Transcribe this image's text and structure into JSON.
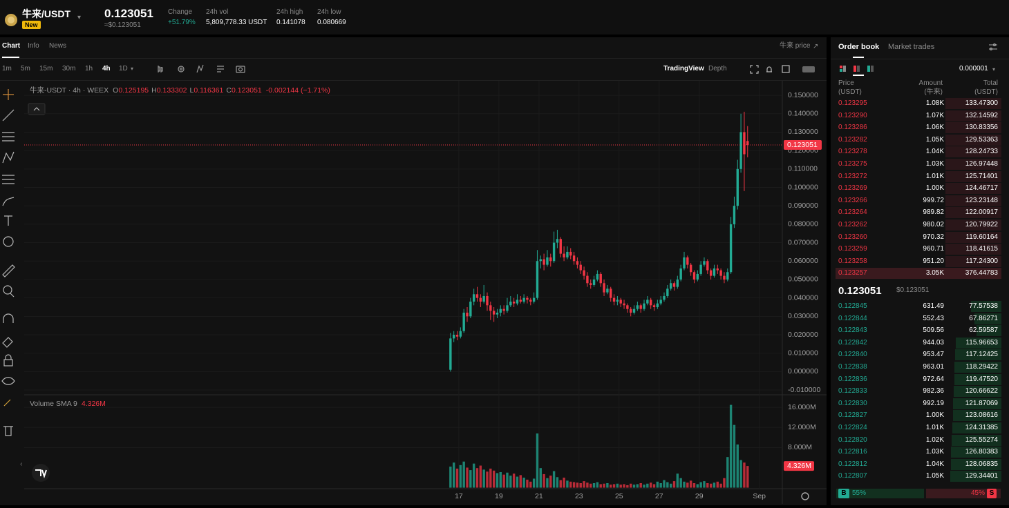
{
  "header": {
    "pair": "牛来/USDT",
    "badge": "New",
    "price": "0.123051",
    "price_usd": "≈$0.123051",
    "stats": [
      {
        "label": "Change",
        "value": "+51.79%"
      },
      {
        "label": "24h vol",
        "value": "5,809,778.33 USDT"
      },
      {
        "label": "24h high",
        "value": "0.141078"
      },
      {
        "label": "24h low",
        "value": "0.080669"
      }
    ]
  },
  "tabs": [
    "Chart",
    "Info",
    "News"
  ],
  "price_link": "牛来 price",
  "intervals": [
    "1m",
    "5m",
    "15m",
    "30m",
    "1h",
    "4h",
    "1D"
  ],
  "views": [
    "TradingView",
    "Depth"
  ],
  "chart_data": {
    "type": "candlestick",
    "legend": {
      "symbol": "牛来-USDT · 4h · WEEX",
      "o_label": "O",
      "o": "0.125195",
      "h_label": "H",
      "h": "0.133302",
      "l_label": "L",
      "l": "0.116361",
      "c_label": "C",
      "c": "0.123051",
      "change": "-0.002144 (−1.71%)"
    },
    "up_color": "#22ab94",
    "down_color": "#f23645",
    "grid": true,
    "xlim": [
      -127.7,
      99.4
    ],
    "xticks": [
      {
        "value": 2.5,
        "label": "17"
      },
      {
        "value": 14.5,
        "label": "19"
      },
      {
        "value": 26.5,
        "label": "21"
      },
      {
        "value": 38.5,
        "label": "23"
      },
      {
        "value": 50.5,
        "label": "25"
      },
      {
        "value": 62.5,
        "label": "27"
      },
      {
        "value": 74.5,
        "label": "29"
      },
      {
        "value": 92.5,
        "label": "Sep"
      }
    ],
    "ylim": [
      -0.0126,
      0.1579
    ],
    "yticks": [
      {
        "value": 0.15,
        "label": "0.150000"
      },
      {
        "value": 0.14,
        "label": "0.140000"
      },
      {
        "value": 0.13,
        "label": "0.130000"
      },
      {
        "value": 0.12,
        "label": "0.120000"
      },
      {
        "value": 0.11,
        "label": "0.110000"
      },
      {
        "value": 0.1,
        "label": "0.100000"
      },
      {
        "value": 0.09,
        "label": "0.090000"
      },
      {
        "value": 0.08,
        "label": "0.080000"
      },
      {
        "value": 0.07,
        "label": "0.070000"
      },
      {
        "value": 0.06,
        "label": "0.060000"
      },
      {
        "value": 0.05,
        "label": "0.050000"
      },
      {
        "value": 0.04,
        "label": "0.040000"
      },
      {
        "value": 0.03,
        "label": "0.030000"
      },
      {
        "value": 0.02,
        "label": "0.020000"
      },
      {
        "value": 0.01,
        "label": "0.010000"
      },
      {
        "value": 0,
        "label": "0.000000"
      },
      {
        "value": -0.01,
        "label": "-0.010000"
      }
    ],
    "last_price": {
      "value": 0.123051,
      "label": "0.123051"
    },
    "candles": [
      [
        0.001,
        0.021,
        0.0,
        0.018
      ],
      [
        0.018,
        0.022,
        0.016,
        0.02
      ],
      [
        0.02,
        0.022,
        0.017,
        0.019
      ],
      [
        0.019,
        0.024,
        0.018,
        0.022
      ],
      [
        0.022,
        0.034,
        0.021,
        0.032
      ],
      [
        0.032,
        0.035,
        0.027,
        0.03
      ],
      [
        0.03,
        0.04,
        0.029,
        0.038
      ],
      [
        0.038,
        0.045,
        0.036,
        0.042
      ],
      [
        0.042,
        0.046,
        0.038,
        0.04
      ],
      [
        0.04,
        0.042,
        0.035,
        0.038
      ],
      [
        0.038,
        0.047,
        0.037,
        0.041
      ],
      [
        0.041,
        0.043,
        0.033,
        0.036
      ],
      [
        0.036,
        0.038,
        0.028,
        0.033
      ],
      [
        0.033,
        0.035,
        0.027,
        0.031
      ],
      [
        0.031,
        0.034,
        0.029,
        0.032
      ],
      [
        0.032,
        0.036,
        0.03,
        0.034
      ],
      [
        0.034,
        0.036,
        0.031,
        0.033
      ],
      [
        0.033,
        0.04,
        0.032,
        0.036
      ],
      [
        0.036,
        0.041,
        0.035,
        0.038
      ],
      [
        0.038,
        0.04,
        0.035,
        0.037
      ],
      [
        0.037,
        0.042,
        0.036,
        0.039
      ],
      [
        0.039,
        0.041,
        0.037,
        0.038
      ],
      [
        0.038,
        0.042,
        0.037,
        0.04
      ],
      [
        0.04,
        0.041,
        0.037,
        0.039
      ],
      [
        0.039,
        0.04,
        0.036,
        0.038
      ],
      [
        0.038,
        0.043,
        0.037,
        0.04
      ],
      [
        0.04,
        0.066,
        0.039,
        0.06
      ],
      [
        0.06,
        0.063,
        0.056,
        0.061
      ],
      [
        0.061,
        0.064,
        0.055,
        0.058
      ],
      [
        0.058,
        0.066,
        0.057,
        0.062
      ],
      [
        0.062,
        0.064,
        0.057,
        0.06
      ],
      [
        0.06,
        0.076,
        0.059,
        0.07
      ],
      [
        0.07,
        0.077,
        0.067,
        0.072
      ],
      [
        0.072,
        0.073,
        0.062,
        0.064
      ],
      [
        0.064,
        0.068,
        0.06,
        0.062
      ],
      [
        0.062,
        0.068,
        0.061,
        0.065
      ],
      [
        0.065,
        0.067,
        0.061,
        0.063
      ],
      [
        0.063,
        0.065,
        0.058,
        0.06
      ],
      [
        0.06,
        0.062,
        0.056,
        0.058
      ],
      [
        0.058,
        0.06,
        0.053,
        0.055
      ],
      [
        0.055,
        0.057,
        0.05,
        0.052
      ],
      [
        0.052,
        0.054,
        0.046,
        0.048
      ],
      [
        0.048,
        0.05,
        0.045,
        0.047
      ],
      [
        0.047,
        0.052,
        0.046,
        0.05
      ],
      [
        0.05,
        0.055,
        0.049,
        0.053
      ],
      [
        0.053,
        0.054,
        0.046,
        0.048
      ],
      [
        0.048,
        0.05,
        0.041,
        0.043
      ],
      [
        0.043,
        0.047,
        0.042,
        0.045
      ],
      [
        0.045,
        0.046,
        0.038,
        0.04
      ],
      [
        0.04,
        0.042,
        0.036,
        0.038
      ],
      [
        0.038,
        0.041,
        0.036,
        0.039
      ],
      [
        0.039,
        0.04,
        0.035,
        0.037
      ],
      [
        0.037,
        0.039,
        0.034,
        0.036
      ],
      [
        0.036,
        0.037,
        0.032,
        0.034
      ],
      [
        0.034,
        0.035,
        0.03,
        0.032
      ],
      [
        0.032,
        0.036,
        0.031,
        0.034
      ],
      [
        0.034,
        0.038,
        0.033,
        0.036
      ],
      [
        0.036,
        0.037,
        0.032,
        0.034
      ],
      [
        0.034,
        0.039,
        0.033,
        0.037
      ],
      [
        0.037,
        0.041,
        0.036,
        0.039
      ],
      [
        0.039,
        0.04,
        0.034,
        0.036
      ],
      [
        0.036,
        0.037,
        0.033,
        0.035
      ],
      [
        0.035,
        0.039,
        0.034,
        0.037
      ],
      [
        0.037,
        0.041,
        0.036,
        0.039
      ],
      [
        0.039,
        0.043,
        0.038,
        0.041
      ],
      [
        0.041,
        0.047,
        0.04,
        0.045
      ],
      [
        0.045,
        0.05,
        0.044,
        0.048
      ],
      [
        0.048,
        0.049,
        0.044,
        0.046
      ],
      [
        0.046,
        0.052,
        0.045,
        0.05
      ],
      [
        0.05,
        0.058,
        0.049,
        0.056
      ],
      [
        0.056,
        0.065,
        0.055,
        0.062
      ],
      [
        0.062,
        0.063,
        0.056,
        0.058
      ],
      [
        0.058,
        0.059,
        0.052,
        0.054
      ],
      [
        0.054,
        0.055,
        0.048,
        0.05
      ],
      [
        0.05,
        0.055,
        0.049,
        0.053
      ],
      [
        0.053,
        0.06,
        0.052,
        0.058
      ],
      [
        0.058,
        0.062,
        0.057,
        0.06
      ],
      [
        0.06,
        0.061,
        0.053,
        0.055
      ],
      [
        0.055,
        0.056,
        0.05,
        0.052
      ],
      [
        0.052,
        0.058,
        0.051,
        0.056
      ],
      [
        0.056,
        0.058,
        0.053,
        0.055
      ],
      [
        0.055,
        0.056,
        0.05,
        0.052
      ],
      [
        0.052,
        0.054,
        0.048,
        0.05
      ],
      [
        0.05,
        0.056,
        0.049,
        0.054
      ],
      [
        0.054,
        0.084,
        0.053,
        0.08
      ],
      [
        0.08,
        0.095,
        0.078,
        0.09
      ],
      [
        0.09,
        0.115,
        0.088,
        0.11
      ],
      [
        0.11,
        0.14,
        0.108,
        0.13
      ],
      [
        0.13,
        0.141078,
        0.098,
        0.118
      ],
      [
        0.125195,
        0.133302,
        0.116361,
        0.123051
      ]
    ],
    "volume_title": "Volume SMA 9",
    "volume_sma": "4.326M",
    "vlim": [
      -0.2,
      18.5
    ],
    "vticks": [
      {
        "value": 16,
        "label": "16.000M"
      },
      {
        "value": 12,
        "label": "12.000M"
      },
      {
        "value": 8,
        "label": "8.000M"
      }
    ],
    "last_volume": {
      "value": 4.326,
      "label": "4.326M"
    },
    "volumes": [
      4.2,
      5.0,
      3.8,
      4.5,
      5.2,
      4.0,
      3.5,
      4.8,
      3.9,
      4.4,
      3.6,
      3.2,
      3.8,
      3.4,
      2.9,
      3.1,
      2.6,
      3.0,
      2.4,
      2.8,
      2.2,
      2.5,
      2.0,
      1.6,
      1.2,
      1.8,
      10.8,
      3.9,
      2.7,
      1.9,
      2.4,
      3.3,
      2.1,
      1.5,
      2.0,
      1.4,
      1.2,
      1.1,
      1.0,
      0.9,
      1.3,
      1.0,
      0.8,
      0.9,
      1.1,
      0.7,
      0.8,
      0.9,
      0.6,
      0.7,
      0.8,
      0.6,
      0.7,
      0.5,
      0.8,
      0.6,
      0.7,
      0.9,
      0.6,
      0.8,
      1.0,
      0.7,
      1.2,
      0.9,
      1.5,
      1.1,
      0.8,
      1.3,
      2.8,
      1.9,
      1.2,
      1.0,
      1.4,
      0.9,
      0.7,
      1.1,
      1.3,
      0.9,
      0.8,
      1.0,
      1.2,
      0.8,
      1.9,
      6.1,
      16.5,
      12.5,
      8.6,
      5.5,
      5.0,
      4.326
    ]
  },
  "order_book": {
    "tabs": [
      "Order book",
      "Market trades"
    ],
    "precision": "0.000001",
    "columns": [
      [
        "Price",
        "(USDT)"
      ],
      [
        "Amount",
        "(牛来)"
      ],
      [
        "Total",
        "(USDT)"
      ]
    ],
    "asks": [
      [
        "0.123295",
        "1.08K",
        "133.47300"
      ],
      [
        "0.123290",
        "1.07K",
        "132.14592"
      ],
      [
        "0.123286",
        "1.06K",
        "130.83356"
      ],
      [
        "0.123282",
        "1.05K",
        "129.53363"
      ],
      [
        "0.123278",
        "1.04K",
        "128.24733"
      ],
      [
        "0.123275",
        "1.03K",
        "126.97448"
      ],
      [
        "0.123272",
        "1.01K",
        "125.71401"
      ],
      [
        "0.123269",
        "1.00K",
        "124.46717"
      ],
      [
        "0.123266",
        "999.72",
        "123.23148"
      ],
      [
        "0.123264",
        "989.82",
        "122.00917"
      ],
      [
        "0.123262",
        "980.02",
        "120.79922"
      ],
      [
        "0.123260",
        "970.32",
        "119.60164"
      ],
      [
        "0.123259",
        "960.71",
        "118.41615"
      ],
      [
        "0.123258",
        "951.20",
        "117.24300"
      ],
      [
        "0.123257",
        "3.05K",
        "376.44783"
      ]
    ],
    "mid": "0.123051",
    "mid_usd": "$0.123051",
    "bids": [
      [
        "0.122845",
        "631.49",
        "77.57538"
      ],
      [
        "0.122844",
        "552.43",
        "67.86271"
      ],
      [
        "0.122843",
        "509.56",
        "62.59587"
      ],
      [
        "0.122842",
        "944.03",
        "115.96653"
      ],
      [
        "0.122840",
        "953.47",
        "117.12425"
      ],
      [
        "0.122838",
        "963.01",
        "118.29422"
      ],
      [
        "0.122836",
        "972.64",
        "119.47520"
      ],
      [
        "0.122833",
        "982.36",
        "120.66622"
      ],
      [
        "0.122830",
        "992.19",
        "121.87069"
      ],
      [
        "0.122827",
        "1.00K",
        "123.08616"
      ],
      [
        "0.122824",
        "1.01K",
        "124.31385"
      ],
      [
        "0.122820",
        "1.02K",
        "125.55274"
      ],
      [
        "0.122816",
        "1.03K",
        "126.80383"
      ],
      [
        "0.122812",
        "1.04K",
        "128.06835"
      ],
      [
        "0.122807",
        "1.05K",
        "129.34401"
      ]
    ],
    "buy": "B",
    "buy_pct": "55%",
    "sell_pct": "45%",
    "sell": "S"
  }
}
